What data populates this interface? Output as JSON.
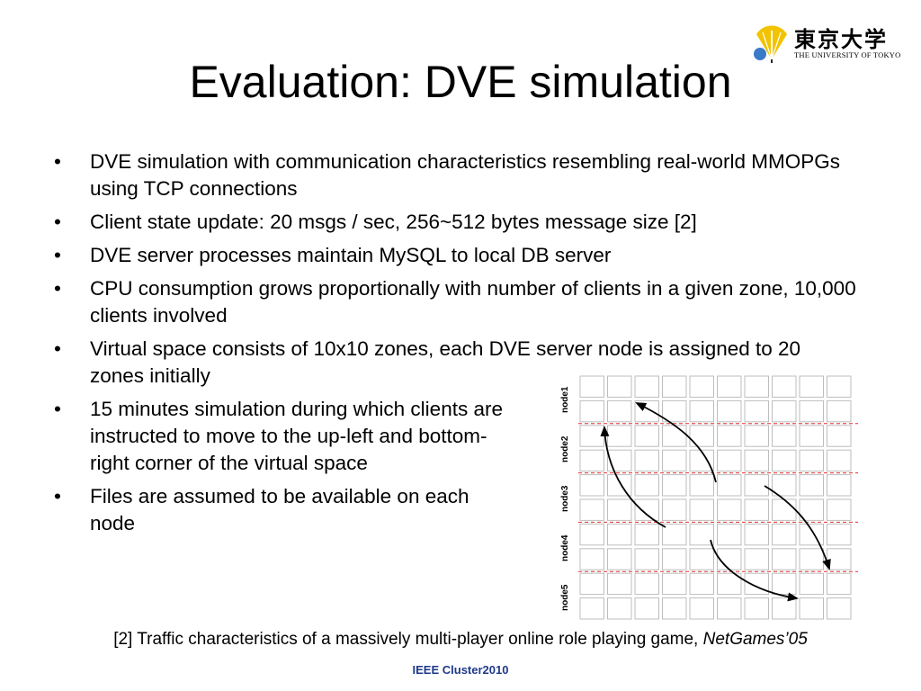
{
  "logo": {
    "kanji": "東京大学",
    "english": "THE UNIVERSITY OF TOKYO",
    "emblem": "ginkgo-leaf-icon"
  },
  "slide": {
    "title": "Evaluation: DVE simulation",
    "bullets": [
      "DVE simulation with communication characteristics resembling real-world MMOPGs using TCP connections",
      "Client state update: 20 msgs / sec, 256~512 bytes message size [2]",
      "DVE server processes maintain MySQL to local DB server",
      "CPU consumption grows proportionally with number of clients in a given zone, 10,000 clients involved",
      "Virtual space consists of 10x10 zones, each DVE server node is assigned to 20 zones initially",
      "15 minutes simulation  during which clients are instructed to move to the up-left and bottom-right corner of the virtual space",
      "Files are assumed to be available on each node"
    ],
    "bullet_symbol": "•"
  },
  "diagram": {
    "node_labels": [
      "node1",
      "node2",
      "node3",
      "node4",
      "node5"
    ],
    "rows": 10,
    "cols": 10,
    "divider_color": "#e03030"
  },
  "footnote": {
    "prefix": "[2] Traffic characteristics of a massively multi-player online role playing game, ",
    "venue": "NetGames’05"
  },
  "conference": "IEEE Cluster2010",
  "colors": {
    "conference_text": "#1f3a8a",
    "logo_gold": "#f2c300"
  }
}
